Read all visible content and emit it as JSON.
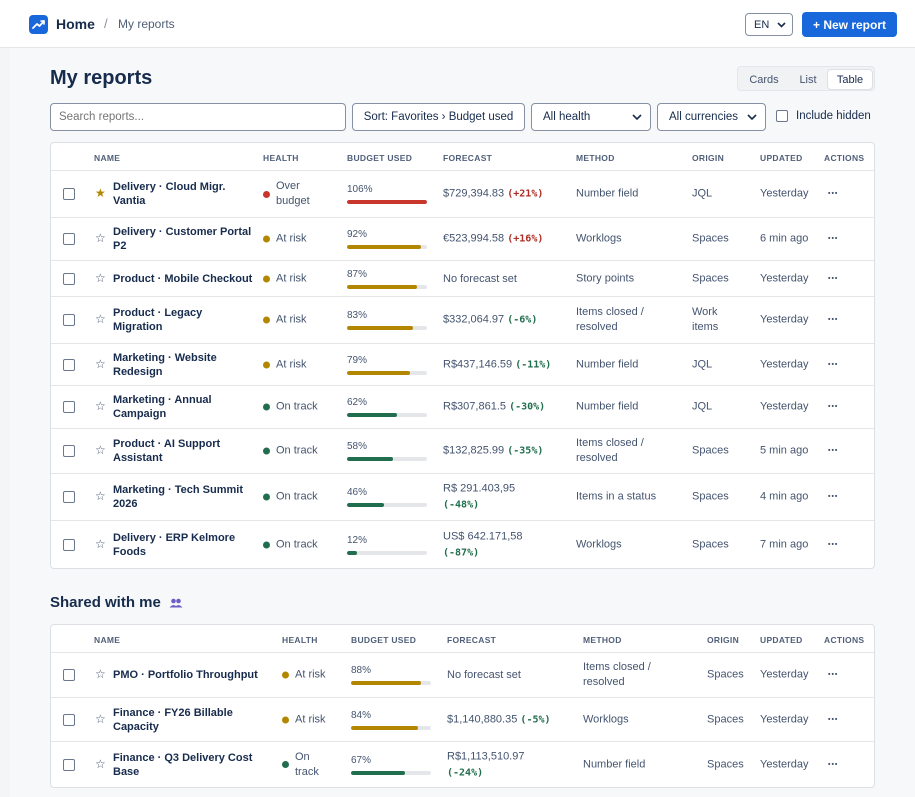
{
  "header": {
    "home": "Home",
    "separator": "/",
    "current": "My reports",
    "language": "EN",
    "new_report": "+ New report"
  },
  "page_title": "My reports",
  "views": [
    "Cards",
    "List",
    "Table"
  ],
  "active_view": "Table",
  "toolbar": {
    "search_placeholder": "Search reports...",
    "sort": "Sort: Favorites › Budget used",
    "health_filter": "All health",
    "currency_filter": "All currencies",
    "include_hidden": "Include hidden"
  },
  "columns": {
    "name": "NAME",
    "health": "HEALTH",
    "budget_used": "BUDGET USED",
    "forecast": "FORECAST",
    "method": "METHOD",
    "origin": "ORIGIN",
    "updated": "UPDATED",
    "actions": "ACTIONS"
  },
  "colors": {
    "accent": "#1868db",
    "over_budget": "#c9372c",
    "at_risk": "#b38600",
    "on_track": "#216e4e",
    "delta_negative": "#216e4e",
    "delta_positive": "#ae2e24",
    "favorite_star": "#b38600"
  },
  "my_reports": [
    {
      "name_1": "Delivery · Cloud Migr.",
      "name_2": "Vantia",
      "favorite": true,
      "health": "Over budget",
      "health_1": "Over",
      "health_2": "budget",
      "health_status": "over",
      "budget_pct": 106,
      "budget_label": "106%",
      "forecast_amount": "$729,394.83",
      "forecast_delta": "(+21%)",
      "delta_dir": "up",
      "method_1": "Number field",
      "method_2": "",
      "origin_1": "JQL",
      "origin_2": "",
      "updated": "Yesterday"
    },
    {
      "name_1": "Delivery · Customer Portal",
      "name_2": "P2",
      "favorite": false,
      "health": "At risk",
      "health_status": "risk",
      "budget_pct": 92,
      "budget_label": "92%",
      "forecast_amount": "€523,994.58",
      "forecast_delta": "(+16%)",
      "delta_dir": "up",
      "method_1": "Worklogs",
      "method_2": "",
      "origin_1": "Spaces",
      "origin_2": "",
      "updated": "6 min ago"
    },
    {
      "name_1": "Product · Mobile Checkout",
      "name_2": "",
      "favorite": false,
      "health": "At risk",
      "health_status": "risk",
      "budget_pct": 87,
      "budget_label": "87%",
      "forecast_amount": "No forecast set",
      "forecast_delta": "",
      "delta_dir": "none",
      "method_1": "Story points",
      "method_2": "",
      "origin_1": "Spaces",
      "origin_2": "",
      "updated": "Yesterday"
    },
    {
      "name_1": "Product · Legacy",
      "name_2": "Migration",
      "favorite": false,
      "health": "At risk",
      "health_status": "risk",
      "budget_pct": 83,
      "budget_label": "83%",
      "forecast_amount": "$332,064.97",
      "forecast_delta": "(-6%)",
      "delta_dir": "down",
      "method_1": "Items closed /",
      "method_2": "resolved",
      "origin_1": "Work",
      "origin_2": "items",
      "updated": "Yesterday"
    },
    {
      "name_1": "Marketing · Website",
      "name_2": "Redesign",
      "favorite": false,
      "health": "At risk",
      "health_status": "risk",
      "budget_pct": 79,
      "budget_label": "79%",
      "forecast_amount": "R$437,146.59",
      "forecast_delta": "(-11%)",
      "delta_dir": "down",
      "method_1": "Number field",
      "method_2": "",
      "origin_1": "JQL",
      "origin_2": "",
      "updated": "Yesterday"
    },
    {
      "name_1": "Marketing · Annual",
      "name_2": "Campaign",
      "favorite": false,
      "health": "On track",
      "health_status": "track",
      "budget_pct": 62,
      "budget_label": "62%",
      "forecast_amount": "R$307,861.5",
      "forecast_delta": "(-30%)",
      "delta_dir": "down",
      "method_1": "Number field",
      "method_2": "",
      "origin_1": "JQL",
      "origin_2": "",
      "updated": "Yesterday"
    },
    {
      "name_1": "Product · AI Support",
      "name_2": "Assistant",
      "favorite": false,
      "health": "On track",
      "health_status": "track",
      "budget_pct": 58,
      "budget_label": "58%",
      "forecast_amount": "$132,825.99",
      "forecast_delta": "(-35%)",
      "delta_dir": "down",
      "method_1": "Items closed /",
      "method_2": "resolved",
      "origin_1": "Spaces",
      "origin_2": "",
      "updated": "5 min ago"
    },
    {
      "name_1": "Marketing · Tech Summit",
      "name_2": "2026",
      "favorite": false,
      "health": "On track",
      "health_status": "track",
      "budget_pct": 46,
      "budget_label": "46%",
      "forecast_amount": "R$ 291.403,95",
      "forecast_delta": "(-48%)",
      "delta_dir": "down",
      "forecast_wrap": true,
      "method_1": "Items in a status",
      "method_2": "",
      "origin_1": "Spaces",
      "origin_2": "",
      "updated": "4 min ago"
    },
    {
      "name_1": "Delivery · ERP Kelmore",
      "name_2": "Foods",
      "favorite": false,
      "health": "On track",
      "health_status": "track",
      "budget_pct": 12,
      "budget_label": "12%",
      "forecast_amount": "US$ 642.171,58",
      "forecast_delta": "(-87%)",
      "delta_dir": "down",
      "forecast_wrap": true,
      "method_1": "Worklogs",
      "method_2": "",
      "origin_1": "Spaces",
      "origin_2": "",
      "updated": "7 min ago"
    }
  ],
  "shared_title": "Shared with me",
  "shared_reports": [
    {
      "name_1": "PMO · Portfolio Throughput",
      "name_2": "",
      "favorite": false,
      "health": "At risk",
      "health_status": "risk",
      "budget_pct": 88,
      "budget_label": "88%",
      "forecast_amount": "No forecast set",
      "forecast_delta": "",
      "delta_dir": "none",
      "method_1": "Items closed /",
      "method_2": "resolved",
      "origin_1": "Spaces",
      "origin_2": "",
      "updated": "Yesterday"
    },
    {
      "name_1": "Finance · FY26 Billable",
      "name_2": "Capacity",
      "favorite": false,
      "health": "At risk",
      "health_status": "risk",
      "budget_pct": 84,
      "budget_label": "84%",
      "forecast_amount": "$1,140,880.35",
      "forecast_delta": "(-5%)",
      "delta_dir": "down",
      "method_1": "Worklogs",
      "method_2": "",
      "origin_1": "Spaces",
      "origin_2": "",
      "updated": "Yesterday"
    },
    {
      "name_1": "Finance · Q3 Delivery Cost",
      "name_2": "Base",
      "favorite": false,
      "health": "On track",
      "health_1": "On",
      "health_2": "track",
      "health_status": "track",
      "budget_pct": 67,
      "budget_label": "67%",
      "forecast_amount": "R$1,113,510.97",
      "forecast_delta": "(-24%)",
      "delta_dir": "down",
      "forecast_wrap": true,
      "method_1": "Number field",
      "method_2": "",
      "origin_1": "Spaces",
      "origin_2": "",
      "updated": "Yesterday"
    }
  ]
}
